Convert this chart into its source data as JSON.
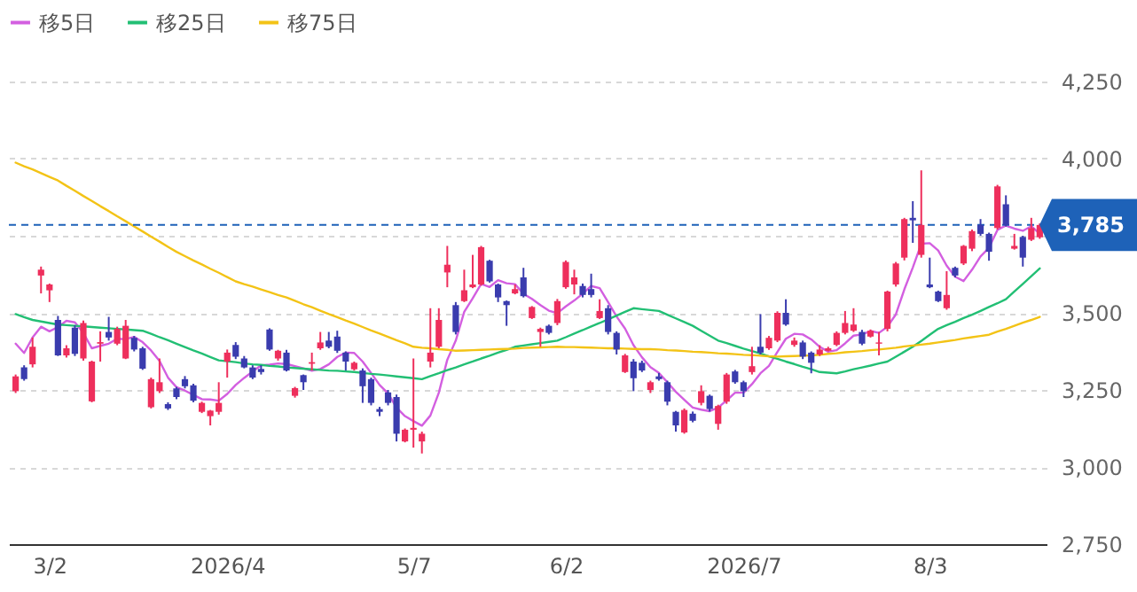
{
  "chart_data": {
    "type": "candlestick",
    "categories": [
      null,
      null,
      null,
      null,
      "3/2",
      null,
      null,
      null,
      null,
      null,
      null,
      null,
      null,
      null,
      null,
      null,
      null,
      null,
      null,
      null,
      null,
      null,
      null,
      null,
      null,
      "2026/4",
      null,
      null,
      null,
      null,
      null,
      null,
      null,
      null,
      null,
      null,
      null,
      null,
      null,
      null,
      null,
      null,
      null,
      null,
      null,
      null,
      null,
      "5/7",
      null,
      null,
      null,
      null,
      null,
      null,
      null,
      null,
      null,
      null,
      null,
      null,
      null,
      null,
      null,
      null,
      null,
      "6/2",
      null,
      null,
      null,
      null,
      null,
      null,
      null,
      null,
      null,
      null,
      null,
      null,
      null,
      null,
      null,
      null,
      null,
      null,
      null,
      null,
      "2026/7",
      null,
      null,
      null,
      null,
      null,
      null,
      null,
      null,
      null,
      null,
      null,
      null,
      null,
      null,
      null,
      null,
      null,
      null,
      null,
      null,
      null,
      "8/3",
      null,
      null,
      null,
      null,
      null,
      null,
      null,
      null,
      null,
      null,
      null,
      null,
      null
    ],
    "ohlc": [
      [
        3246,
        3300,
        3240,
        3294
      ],
      [
        3323,
        3330,
        3280,
        3285
      ],
      [
        3333,
        3420,
        3323,
        3390
      ],
      [
        3621,
        3650,
        3563,
        3640
      ],
      [
        3573,
        3595,
        3535,
        3592
      ],
      [
        3477,
        3490,
        3360,
        3362
      ],
      [
        3362,
        3395,
        3355,
        3385
      ],
      [
        3452,
        3460,
        3360,
        3367
      ],
      [
        3352,
        3475,
        3345,
        3467
      ],
      [
        3213,
        3345,
        3210,
        3342
      ],
      [
        3400,
        3440,
        3342,
        3405
      ],
      [
        3438,
        3487,
        3410,
        3420
      ],
      [
        3400,
        3455,
        3395,
        3448
      ],
      [
        3352,
        3477,
        3350,
        3458
      ],
      [
        3419,
        3425,
        3375,
        3381
      ],
      [
        3385,
        3390,
        3315,
        3319
      ],
      [
        3194,
        3290,
        3190,
        3285
      ],
      [
        3246,
        3352,
        3240,
        3275
      ],
      [
        3204,
        3210,
        3185,
        3190
      ],
      [
        3255,
        3260,
        3220,
        3227
      ],
      [
        3285,
        3295,
        3255,
        3262
      ],
      [
        3265,
        3270,
        3210,
        3215
      ],
      [
        3179,
        3212,
        3175,
        3208
      ],
      [
        3165,
        3185,
        3135,
        3183
      ],
      [
        3179,
        3275,
        3170,
        3208
      ],
      [
        3342,
        3381,
        3290,
        3371
      ],
      [
        3396,
        3405,
        3350,
        3358
      ],
      [
        3352,
        3360,
        3320,
        3323
      ],
      [
        3323,
        3330,
        3285,
        3290
      ],
      [
        3318,
        3330,
        3300,
        3308
      ],
      [
        3446,
        3450,
        3377,
        3381
      ],
      [
        3352,
        3380,
        3345,
        3377
      ],
      [
        3371,
        3380,
        3310,
        3313
      ],
      [
        3231,
        3260,
        3225,
        3256
      ],
      [
        3298,
        3300,
        3250,
        3275
      ],
      [
        3335,
        3371,
        3313,
        3340
      ],
      [
        3385,
        3438,
        3380,
        3404
      ],
      [
        3410,
        3438,
        3385,
        3390
      ],
      [
        3423,
        3442,
        3370,
        3377
      ],
      [
        3371,
        3375,
        3313,
        3342
      ],
      [
        3317,
        3342,
        3313,
        3338
      ],
      [
        3313,
        3320,
        3208,
        3262
      ],
      [
        3285,
        3290,
        3200,
        3208
      ],
      [
        3188,
        3195,
        3165,
        3179
      ],
      [
        3242,
        3250,
        3200,
        3208
      ],
      [
        3227,
        3235,
        3083,
        3108
      ],
      [
        3083,
        3125,
        3080,
        3121
      ],
      [
        3121,
        3352,
        3063,
        3127
      ],
      [
        3083,
        3115,
        3044,
        3108
      ],
      [
        3342,
        3515,
        3323,
        3371
      ],
      [
        3390,
        3515,
        3385,
        3477
      ],
      [
        3631,
        3717,
        3583,
        3656
      ],
      [
        3525,
        3535,
        3430,
        3438
      ],
      [
        3538,
        3640,
        3535,
        3573
      ],
      [
        3583,
        3688,
        3580,
        3592
      ],
      [
        3592,
        3717,
        3588,
        3713
      ],
      [
        3669,
        3672,
        3598,
        3602
      ],
      [
        3592,
        3595,
        3535,
        3550
      ],
      [
        3538,
        3540,
        3458,
        3525
      ],
      [
        3563,
        3592,
        3560,
        3577
      ],
      [
        3615,
        3646,
        3550,
        3554
      ],
      [
        3483,
        3522,
        3480,
        3519
      ],
      [
        3438,
        3452,
        3390,
        3448
      ],
      [
        3458,
        3462,
        3430,
        3435
      ],
      [
        3467,
        3545,
        3460,
        3538
      ],
      [
        3583,
        3670,
        3578,
        3665
      ],
      [
        3592,
        3640,
        3560,
        3615
      ],
      [
        3587,
        3595,
        3550,
        3558
      ],
      [
        3577,
        3627,
        3550,
        3558
      ],
      [
        3483,
        3544,
        3480,
        3506
      ],
      [
        3515,
        3525,
        3430,
        3438
      ],
      [
        3435,
        3440,
        3365,
        3381
      ],
      [
        3308,
        3367,
        3305,
        3362
      ],
      [
        3342,
        3350,
        3246,
        3288
      ],
      [
        3338,
        3345,
        3308,
        3313
      ],
      [
        3250,
        3280,
        3240,
        3275
      ],
      [
        3294,
        3305,
        3280,
        3285
      ],
      [
        3275,
        3280,
        3200,
        3212
      ],
      [
        3179,
        3182,
        3115,
        3135
      ],
      [
        3112,
        3190,
        3108,
        3185
      ],
      [
        3173,
        3180,
        3145,
        3150
      ],
      [
        3208,
        3265,
        3200,
        3246
      ],
      [
        3231,
        3235,
        3180,
        3188
      ],
      [
        3140,
        3202,
        3121,
        3198
      ],
      [
        3212,
        3305,
        3205,
        3300
      ],
      [
        3310,
        3315,
        3270,
        3275
      ],
      [
        3275,
        3280,
        3227,
        3246
      ],
      [
        3308,
        3390,
        3300,
        3327
      ],
      [
        3390,
        3496,
        3365,
        3371
      ],
      [
        3385,
        3425,
        3380,
        3419
      ],
      [
        3410,
        3505,
        3405,
        3500
      ],
      [
        3500,
        3544,
        3458,
        3462
      ],
      [
        3396,
        3420,
        3390,
        3410
      ],
      [
        3404,
        3410,
        3350,
        3358
      ],
      [
        3371,
        3375,
        3304,
        3338
      ],
      [
        3365,
        3395,
        3360,
        3381
      ],
      [
        3377,
        3390,
        3375,
        3385
      ],
      [
        3396,
        3440,
        3392,
        3435
      ],
      [
        3435,
        3506,
        3430,
        3467
      ],
      [
        3442,
        3515,
        3438,
        3462
      ],
      [
        3438,
        3445,
        3395,
        3400
      ],
      [
        3423,
        3446,
        3420,
        3442
      ],
      [
        3400,
        3438,
        3362,
        3404
      ],
      [
        3448,
        3572,
        3440,
        3569
      ],
      [
        3592,
        3665,
        3585,
        3660
      ],
      [
        3679,
        3808,
        3670,
        3804
      ],
      [
        3808,
        3862,
        3727,
        3800
      ],
      [
        3688,
        3962,
        3679,
        3785
      ],
      [
        3592,
        3679,
        3580,
        3583
      ],
      [
        3569,
        3572,
        3535,
        3538
      ],
      [
        3515,
        3635,
        3510,
        3558
      ],
      [
        3646,
        3650,
        3615,
        3621
      ],
      [
        3660,
        3720,
        3655,
        3717
      ],
      [
        3708,
        3770,
        3700,
        3765
      ],
      [
        3785,
        3804,
        3750,
        3756
      ],
      [
        3756,
        3760,
        3669,
        3698
      ],
      [
        3775,
        3915,
        3770,
        3910
      ],
      [
        3852,
        3881,
        3780,
        3785
      ],
      [
        3708,
        3756,
        3705,
        3717
      ],
      [
        3746,
        3750,
        3650,
        3679
      ],
      [
        3737,
        3808,
        3733,
        3775
      ],
      [
        3745,
        3790,
        3740,
        3785
      ]
    ],
    "colors": [
      "#ee2f5c",
      "#3a3cae",
      "#ee2f5c",
      "#ee2f5c",
      "#ee2f5c",
      "#3a3cae",
      "#ee2f5c",
      "#3a3cae",
      "#ee2f5c",
      "#ee2f5c",
      "#ee2f5c",
      "#3a3cae",
      "#ee2f5c",
      "#ee2f5c",
      "#3a3cae",
      "#3a3cae",
      "#ee2f5c",
      "#ee2f5c",
      "#3a3cae",
      "#3a3cae",
      "#3a3cae",
      "#3a3cae",
      "#ee2f5c",
      "#ee2f5c",
      "#ee2f5c",
      "#ee2f5c",
      "#3a3cae",
      "#3a3cae",
      "#3a3cae",
      "#3a3cae",
      "#3a3cae",
      "#ee2f5c",
      "#3a3cae",
      "#ee2f5c",
      "#3a3cae",
      "#ee2f5c",
      "#ee2f5c",
      "#3a3cae",
      "#3a3cae",
      "#3a3cae",
      "#ee2f5c",
      "#3a3cae",
      "#3a3cae",
      "#3a3cae",
      "#3a3cae",
      "#3a3cae",
      "#ee2f5c",
      "#ee2f5c",
      "#ee2f5c",
      "#ee2f5c",
      "#ee2f5c",
      "#ee2f5c",
      "#3a3cae",
      "#ee2f5c",
      "#ee2f5c",
      "#ee2f5c",
      "#3a3cae",
      "#3a3cae",
      "#3a3cae",
      "#ee2f5c",
      "#3a3cae",
      "#ee2f5c",
      "#ee2f5c",
      "#3a3cae",
      "#ee2f5c",
      "#ee2f5c",
      "#ee2f5c",
      "#3a3cae",
      "#3a3cae",
      "#ee2f5c",
      "#3a3cae",
      "#3a3cae",
      "#ee2f5c",
      "#3a3cae",
      "#3a3cae",
      "#ee2f5c",
      "#3a3cae",
      "#3a3cae",
      "#3a3cae",
      "#ee2f5c",
      "#3a3cae",
      "#ee2f5c",
      "#3a3cae",
      "#ee2f5c",
      "#ee2f5c",
      "#3a3cae",
      "#3a3cae",
      "#ee2f5c",
      "#3a3cae",
      "#ee2f5c",
      "#ee2f5c",
      "#3a3cae",
      "#ee2f5c",
      "#3a3cae",
      "#3a3cae",
      "#ee2f5c",
      "#ee2f5c",
      "#ee2f5c",
      "#ee2f5c",
      "#ee2f5c",
      "#3a3cae",
      "#ee2f5c",
      "#ee2f5c",
      "#ee2f5c",
      "#ee2f5c",
      "#ee2f5c",
      "#3a3cae",
      "#ee2f5c",
      "#3a3cae",
      "#3a3cae",
      "#ee2f5c",
      "#3a3cae",
      "#ee2f5c",
      "#ee2f5c",
      "#3a3cae",
      "#3a3cae",
      "#ee2f5c",
      "#3a3cae",
      "#ee2f5c",
      "#3a3cae",
      "#ee2f5c",
      "#ee2f5c"
    ],
    "series": [
      {
        "name": "移5日",
        "type": "line",
        "color": "#d35fe0",
        "values": [
          3400,
          3370,
          3420,
          3455,
          3440,
          3454,
          3474,
          3469,
          3435,
          3385,
          3393,
          3400,
          3416,
          3415,
          3422,
          3405,
          3378,
          3344,
          3290,
          3259,
          3248,
          3234,
          3220,
          3219,
          3215,
          3237,
          3266,
          3289,
          3310,
          3330,
          3332,
          3336,
          3334,
          3327,
          3320,
          3312,
          3318,
          3333,
          3357,
          3371,
          3370,
          3342,
          3305,
          3266,
          3239,
          3193,
          3165,
          3149,
          3134,
          3167,
          3241,
          3348,
          3410,
          3503,
          3547,
          3594,
          3584,
          3606,
          3596,
          3593,
          3562,
          3545,
          3525,
          3507,
          3499,
          3521,
          3540,
          3562,
          3587,
          3580,
          3535,
          3488,
          3449,
          3395,
          3356,
          3324,
          3305,
          3275,
          3244,
          3218,
          3193,
          3186,
          3181,
          3193,
          3216,
          3241,
          3241,
          3269,
          3304,
          3328,
          3373,
          3416,
          3432,
          3430,
          3414,
          3390,
          3374,
          3379,
          3401,
          3426,
          3430,
          3441,
          3435,
          3455,
          3495,
          3576,
          3647,
          3724,
          3726,
          3702,
          3653,
          3617,
          3603,
          3640,
          3683,
          3711,
          3769,
          3783,
          3773,
          3766,
          3781,
          3756
        ]
      },
      {
        "name": "移25日",
        "type": "line",
        "color": "#22bf74",
        "values": [
          3496,
          3486,
          3477,
          3472,
          3467,
          3462,
          3460,
          3458,
          3456,
          3454,
          3452,
          3450,
          3448,
          3446,
          3444,
          3442,
          3432,
          3421,
          3411,
          3400,
          3389,
          3378,
          3368,
          3357,
          3346,
          3343,
          3340,
          3336,
          3333,
          3331,
          3328,
          3326,
          3323,
          3321,
          3319,
          3317,
          3315,
          3313,
          3312,
          3310,
          3308,
          3305,
          3302,
          3300,
          3297,
          3294,
          3291,
          3288,
          3285,
          3295,
          3304,
          3314,
          3323,
          3333,
          3342,
          3352,
          3361,
          3371,
          3380,
          3390,
          3394,
          3398,
          3402,
          3406,
          3410,
          3421,
          3433,
          3444,
          3456,
          3467,
          3479,
          3491,
          3503,
          3515,
          3512,
          3509,
          3506,
          3494,
          3482,
          3470,
          3458,
          3442,
          3426,
          3410,
          3402,
          3393,
          3384,
          3376,
          3368,
          3359,
          3351,
          3342,
          3334,
          3325,
          3317,
          3308,
          3306,
          3304,
          3310,
          3317,
          3323,
          3329,
          3336,
          3342,
          3358,
          3374,
          3390,
          3409,
          3429,
          3448,
          3460,
          3471,
          3483,
          3494,
          3506,
          3519,
          3531,
          3544,
          3569,
          3594,
          3619,
          3644
        ]
      },
      {
        "name": "移75日",
        "type": "line",
        "color": "#f3c316",
        "values": [
          3987,
          3975,
          3965,
          3953,
          3941,
          3929,
          3912,
          3896,
          3879,
          3863,
          3846,
          3830,
          3813,
          3797,
          3780,
          3764,
          3747,
          3731,
          3714,
          3698,
          3684,
          3670,
          3657,
          3643,
          3630,
          3616,
          3602,
          3593,
          3585,
          3576,
          3567,
          3558,
          3550,
          3539,
          3528,
          3518,
          3507,
          3496,
          3486,
          3475,
          3465,
          3454,
          3443,
          3433,
          3422,
          3411,
          3401,
          3390,
          3387,
          3385,
          3382,
          3380,
          3377,
          3378,
          3379,
          3380,
          3381,
          3382,
          3383,
          3384,
          3386,
          3387,
          3388,
          3389,
          3390,
          3389,
          3389,
          3388,
          3387,
          3386,
          3385,
          3385,
          3384,
          3383,
          3382,
          3382,
          3381,
          3379,
          3378,
          3376,
          3374,
          3373,
          3371,
          3369,
          3368,
          3366,
          3364,
          3363,
          3361,
          3359,
          3358,
          3359,
          3360,
          3361,
          3362,
          3364,
          3367,
          3369,
          3372,
          3374,
          3376,
          3379,
          3381,
          3384,
          3387,
          3391,
          3394,
          3397,
          3400,
          3404,
          3408,
          3412,
          3417,
          3421,
          3425,
          3429,
          3439,
          3448,
          3458,
          3468,
          3477,
          3487
        ]
      }
    ],
    "ylim": [
      2750,
      4250
    ],
    "yticks": [
      {
        "value": 2750,
        "label": "2,750"
      },
      {
        "value": 3000,
        "label": "3,000"
      },
      {
        "value": 3250,
        "label": "3,250"
      },
      {
        "value": 3500,
        "label": "3,500"
      },
      {
        "value": 3750,
        "label": null
      },
      {
        "value": 4000,
        "label": "4,000"
      },
      {
        "value": 4250,
        "label": "4,250"
      }
    ],
    "ref_lines": [
      {
        "axis": "y",
        "value": 3785,
        "label": "3,785",
        "color": "#1e62b8",
        "line_style": "dashed"
      }
    ],
    "grid": "y",
    "legend": "top left"
  }
}
